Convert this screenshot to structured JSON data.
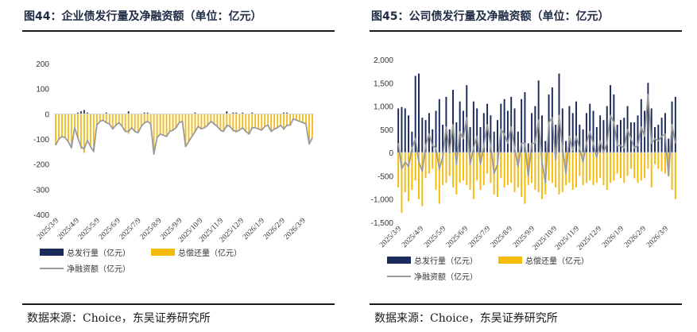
{
  "figures": [
    {
      "id": "fig44",
      "title": "图44：企业债发行量及净融资额（单位：亿元）",
      "source": "数据来源：Choice，东吴证券研究所"
    },
    {
      "id": "fig45",
      "title": "图45：公司债发行量及净融资额（单位：亿元）",
      "source": "数据来源：Choice，东吴证券研究所"
    }
  ],
  "colors": {
    "issuance": "#1a2a5a",
    "repayment": "#f5bb0a",
    "net": "#9a9a9a",
    "axis": "#d9d9d9",
    "text": "#333333"
  },
  "chart_data": [
    {
      "type": "bar",
      "title": "图44：企业债发行量及净融资额（单位：亿元）",
      "ylim": [
        -400,
        200
      ],
      "yticks": [
        -400,
        -300,
        -200,
        -100,
        0,
        100,
        200
      ],
      "ytick_labels": [
        "-400",
        "-300",
        "-200",
        "-100",
        "0",
        "100",
        "200"
      ],
      "xtick_labels": [
        "2025/3/9",
        "2025/4/9",
        "2025/5/9",
        "2025/6/9",
        "2025/7/9",
        "2025/8/9",
        "2025/9/9",
        "2025/10/9",
        "2025/11/9",
        "2025/12/9",
        "2026/1/9",
        "2026/2/9",
        "2026/3/9"
      ],
      "legend": [
        "总发行量（亿元）",
        "总偿还量（亿元）",
        "净融资额（亿元）"
      ],
      "series": [
        {
          "name": "总发行量（亿元）",
          "kind": "bar-up",
          "values": [
            0,
            0,
            0,
            0,
            0,
            0,
            0,
            5,
            10,
            15,
            5,
            0,
            0,
            0,
            0,
            0,
            5,
            0,
            0,
            0,
            0,
            0,
            0,
            10,
            0,
            0,
            0,
            0,
            5,
            5,
            0,
            0,
            0,
            0,
            0,
            0,
            0,
            0,
            0,
            0,
            0,
            0,
            0,
            0,
            5,
            0,
            0,
            0,
            0,
            0,
            0,
            0,
            0,
            0,
            10,
            0,
            5,
            5,
            0,
            5,
            0,
            0,
            5,
            0,
            0,
            0,
            0,
            0,
            0,
            0,
            0,
            0,
            5,
            5,
            0,
            0,
            0,
            0,
            0,
            0,
            0,
            0
          ]
        },
        {
          "name": "总偿还量（亿元）",
          "kind": "bar-down",
          "values": [
            -125,
            -100,
            -90,
            -95,
            -110,
            -135,
            -55,
            -100,
            -140,
            -155,
            -110,
            -130,
            -150,
            -45,
            -30,
            -25,
            -35,
            -40,
            -60,
            -45,
            -35,
            -50,
            -70,
            -80,
            -55,
            -70,
            -75,
            -50,
            -40,
            -35,
            -40,
            -160,
            -95,
            -80,
            -85,
            -90,
            -70,
            -65,
            -55,
            -35,
            -30,
            -130,
            -110,
            -90,
            -75,
            -50,
            -60,
            -55,
            -45,
            -30,
            -40,
            -50,
            -65,
            -70,
            -55,
            -50,
            -70,
            -75,
            -65,
            -60,
            -70,
            -80,
            -60,
            -55,
            -60,
            -65,
            -50,
            -45,
            -70,
            -60,
            -55,
            -45,
            -65,
            -50,
            -45,
            -20,
            -25,
            -30,
            -35,
            -40,
            -120,
            -95
          ]
        },
        {
          "name": "净融资额（亿元）",
          "kind": "line",
          "values": [
            -125,
            -100,
            -90,
            -95,
            -110,
            -135,
            -55,
            -95,
            -130,
            -140,
            -105,
            -130,
            -150,
            -45,
            -30,
            -25,
            -35,
            -40,
            -60,
            -45,
            -35,
            -50,
            -70,
            -70,
            -55,
            -70,
            -75,
            -50,
            -35,
            -30,
            -40,
            -160,
            -95,
            -80,
            -85,
            -90,
            -70,
            -65,
            -55,
            -35,
            -30,
            -130,
            -110,
            -90,
            -70,
            -50,
            -60,
            -55,
            -45,
            -30,
            -40,
            -50,
            -65,
            -70,
            -45,
            -50,
            -65,
            -70,
            -65,
            -55,
            -70,
            -80,
            -55,
            -55,
            -60,
            -65,
            -50,
            -45,
            -70,
            -60,
            -55,
            -45,
            -60,
            -45,
            -45,
            -20,
            -25,
            -30,
            -35,
            -40,
            -120,
            -95
          ]
        }
      ]
    },
    {
      "type": "bar",
      "title": "图45：公司债发行量及净融资额（单位：亿元）",
      "ylim": [
        -1500,
        2000
      ],
      "yticks": [
        -1500,
        -1000,
        -500,
        0,
        500,
        1000,
        1500,
        2000
      ],
      "ytick_labels": [
        "-1,500",
        "-1,000",
        "-500",
        "0",
        "500",
        "1,000",
        "1,500",
        "2,000"
      ],
      "xtick_labels": [
        "2025/3/9",
        "2025/4/9",
        "2025/5/9",
        "2025/6/9",
        "2025/7/9",
        "2025/8/9",
        "2025/9/9",
        "2025/10/9",
        "2025/11/9",
        "2025/12/9",
        "2026/1/9",
        "2026/2/9",
        "2026/3/9"
      ],
      "legend": [
        "总发行量（亿元）",
        "总偿还量（亿元）",
        "净融资额（亿元）"
      ],
      "series": [
        {
          "name": "总发行量（亿元）",
          "kind": "bar-up",
          "values": [
            950,
            980,
            950,
            800,
            450,
            1650,
            1700,
            750,
            700,
            850,
            500,
            900,
            1150,
            600,
            1200,
            500,
            1350,
            650,
            1100,
            900,
            1450,
            550,
            1100,
            950,
            550,
            850,
            1050,
            800,
            450,
            700,
            1050,
            1150,
            900,
            1200,
            950,
            450,
            1150,
            1300,
            200,
            850,
            1000,
            1550,
            800,
            250,
            1250,
            1400,
            600,
            1700,
            950,
            250,
            1000,
            850,
            1100,
            600,
            500,
            850,
            1050,
            900,
            550,
            800,
            700,
            1000,
            1450,
            1250,
            600,
            700,
            750,
            1000,
            650,
            650,
            800,
            1150,
            900,
            1500,
            950,
            550,
            600,
            750,
            850,
            300,
            1100,
            1200
          ]
        },
        {
          "name": "总偿还量（亿元）",
          "kind": "bar-down",
          "values": [
            -750,
            -1300,
            -850,
            -1050,
            -800,
            -600,
            -1000,
            -1150,
            -550,
            -450,
            -350,
            -800,
            -1100,
            -700,
            -650,
            -500,
            -750,
            -900,
            -650,
            -600,
            -700,
            -800,
            -1000,
            -600,
            -800,
            -700,
            -450,
            -650,
            -900,
            -950,
            -550,
            -750,
            -700,
            -650,
            -850,
            -750,
            -950,
            -1100,
            -700,
            -650,
            -800,
            -850,
            -1000,
            -900,
            -600,
            -650,
            -750,
            -900,
            -850,
            -700,
            -650,
            -800,
            -750,
            -500,
            -700,
            -650,
            -600,
            -700,
            -650,
            -550,
            -700,
            -800,
            -650,
            -600,
            -450,
            -550,
            -650,
            -500,
            -350,
            -550,
            -650,
            -600,
            -550,
            -350,
            -750,
            -250,
            -350,
            -400,
            -450,
            -500,
            -800,
            -1000
          ]
        },
        {
          "name": "净融资额（亿元）",
          "kind": "line",
          "values": [
            200,
            -350,
            -200,
            -300,
            100,
            300,
            -200,
            -400,
            150,
            400,
            150,
            100,
            -350,
            -100,
            550,
            0,
            600,
            -250,
            450,
            300,
            750,
            -250,
            100,
            350,
            -250,
            150,
            600,
            150,
            -450,
            -250,
            500,
            400,
            200,
            550,
            100,
            -300,
            200,
            200,
            -500,
            200,
            200,
            700,
            -200,
            -650,
            650,
            750,
            -150,
            800,
            100,
            -450,
            350,
            50,
            350,
            100,
            -200,
            200,
            450,
            200,
            -100,
            250,
            0,
            200,
            800,
            650,
            150,
            150,
            100,
            500,
            300,
            100,
            150,
            550,
            350,
            1250,
            200,
            300,
            250,
            350,
            400,
            -500,
            600,
            200
          ]
        }
      ]
    }
  ]
}
